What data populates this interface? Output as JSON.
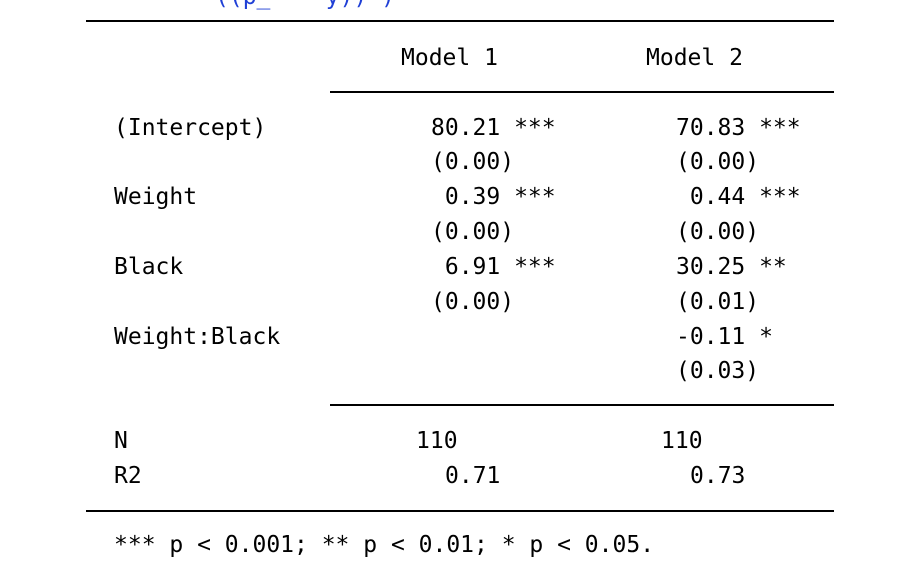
{
  "top_partial_text": "((p_    y)) )",
  "table": {
    "headers": [
      "Model 1",
      "Model 2"
    ],
    "rows": [
      {
        "term": "(Intercept)",
        "m1_est": "80.21 ***",
        "m1_se": "(0.00)",
        "m2_est": "70.83 ***",
        "m2_se": "(0.00)"
      },
      {
        "term": "Weight",
        "m1_est": " 0.39 ***",
        "m1_se": "(0.00)",
        "m2_est": " 0.44 ***",
        "m2_se": "(0.00)"
      },
      {
        "term": "Black",
        "m1_est": " 6.91 ***",
        "m1_se": "(0.00)",
        "m2_est": "30.25 **",
        "m2_se": "(0.01)"
      },
      {
        "term": "Weight:Black",
        "m1_est": "",
        "m1_se": "",
        "m2_est": "-0.11 *",
        "m2_se": "(0.03)"
      }
    ],
    "stats": [
      {
        "label": "N",
        "m1": "110",
        "m2": "110"
      },
      {
        "label": "R2",
        "m1": "0.71",
        "m2": "0.73"
      }
    ],
    "footnote": "*** p < 0.001; ** p < 0.01; * p < 0.05."
  }
}
